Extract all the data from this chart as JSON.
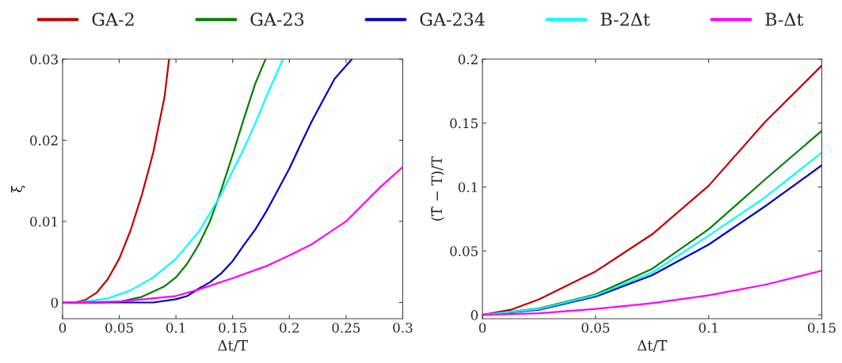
{
  "chart_data": [
    {
      "type": "line",
      "xlabel": "Δt/T",
      "ylabel": "ξ̄",
      "xlim": [
        0,
        0.3
      ],
      "ylim": [
        -0.002,
        0.03
      ],
      "xticks": [
        0,
        0.05,
        0.1,
        0.15,
        0.2,
        0.25,
        0.3
      ],
      "yticks": [
        0,
        0.01,
        0.02,
        0.03
      ],
      "grid": false,
      "legend": "top",
      "line_style": "solid",
      "marker": "none",
      "series": [
        {
          "name": "GA-2",
          "color": "#c00000",
          "x": [
            0,
            0.01,
            0.02,
            0.03,
            0.04,
            0.05,
            0.06,
            0.07,
            0.08,
            0.09,
            0.0939
          ],
          "values": [
            0,
            0,
            0.0003,
            0.0012,
            0.0029,
            0.0054,
            0.0089,
            0.0133,
            0.0185,
            0.0254,
            0.03
          ]
        },
        {
          "name": "GA-23",
          "color": "#008000",
          "x": [
            0,
            0.03,
            0.05,
            0.07,
            0.09,
            0.1,
            0.11,
            0.12,
            0.13,
            0.14,
            0.15,
            0.16,
            0.17,
            0.179
          ],
          "values": [
            0,
            0,
            0.0001,
            0.0007,
            0.002,
            0.0031,
            0.0048,
            0.0071,
            0.01,
            0.0139,
            0.0182,
            0.0227,
            0.027,
            0.03
          ]
        },
        {
          "name": "GA-234",
          "color": "#0000c0",
          "x": [
            0,
            0.05,
            0.08,
            0.1,
            0.11,
            0.12,
            0.13,
            0.14,
            0.15,
            0.16,
            0.17,
            0.18,
            0.19,
            0.2,
            0.21,
            0.22,
            0.23,
            0.24,
            0.2552
          ],
          "values": [
            0,
            0,
            0,
            0.0004,
            0.0008,
            0.0017,
            0.0025,
            0.0036,
            0.0051,
            0.0071,
            0.009,
            0.0113,
            0.0139,
            0.0165,
            0.0195,
            0.0224,
            0.025,
            0.0276,
            0.03
          ]
        },
        {
          "name": "B-2Δt",
          "color": "#00ffff",
          "x": [
            0,
            0.02,
            0.04,
            0.06,
            0.08,
            0.1,
            0.12,
            0.13,
            0.14,
            0.15,
            0.16,
            0.17,
            0.18,
            0.1944
          ],
          "values": [
            0,
            0.0001,
            0.0005,
            0.0015,
            0.0031,
            0.0054,
            0.0087,
            0.011,
            0.0134,
            0.0162,
            0.019,
            0.0221,
            0.0255,
            0.03
          ]
        },
        {
          "name": "B-Δt",
          "color": "#ff00ff",
          "x": [
            0,
            0.05,
            0.1,
            0.12,
            0.15,
            0.18,
            0.2,
            0.22,
            0.25,
            0.28,
            0.3
          ],
          "values": [
            0,
            0.0001,
            0.0008,
            0.0016,
            0.003,
            0.0045,
            0.0058,
            0.0072,
            0.01,
            0.0142,
            0.0167
          ]
        }
      ]
    },
    {
      "type": "line",
      "xlabel": "Δt/T",
      "ylabel": "(T̄ − T)/T",
      "xlim": [
        0,
        0.15
      ],
      "ylim": [
        -0.003,
        0.2
      ],
      "xticks": [
        0,
        0.05,
        0.1,
        0.15
      ],
      "yticks": [
        0,
        0.05,
        0.1,
        0.15,
        0.2
      ],
      "grid": false,
      "line_style": "solid",
      "marker": "none",
      "series": [
        {
          "color": "#c00000",
          "x": [
            0,
            0.0125,
            0.025,
            0.05,
            0.075,
            0.1,
            0.125,
            0.15
          ],
          "values": [
            0,
            0.004,
            0.0122,
            0.034,
            0.063,
            0.101,
            0.151,
            0.195
          ]
        },
        {
          "color": "#008000",
          "x": [
            0,
            0.025,
            0.05,
            0.075,
            0.1,
            0.125,
            0.15
          ],
          "values": [
            0,
            0.005,
            0.016,
            0.036,
            0.067,
            0.106,
            0.144
          ]
        },
        {
          "color": "#0000c0",
          "x": [
            0,
            0.025,
            0.05,
            0.075,
            0.1,
            0.125,
            0.15
          ],
          "values": [
            0,
            0.004,
            0.0143,
            0.031,
            0.055,
            0.085,
            0.117
          ]
        },
        {
          "color": "#00ffff",
          "x": [
            0,
            0.025,
            0.05,
            0.075,
            0.1,
            0.125,
            0.15
          ],
          "values": [
            0,
            0.0046,
            0.0153,
            0.033,
            0.062,
            0.092,
            0.127
          ]
        },
        {
          "color": "#ff00ff",
          "x": [
            0,
            0.025,
            0.05,
            0.075,
            0.1,
            0.125,
            0.15
          ],
          "values": [
            0,
            0.0012,
            0.0046,
            0.0091,
            0.0153,
            0.0236,
            0.0346
          ]
        }
      ]
    }
  ]
}
